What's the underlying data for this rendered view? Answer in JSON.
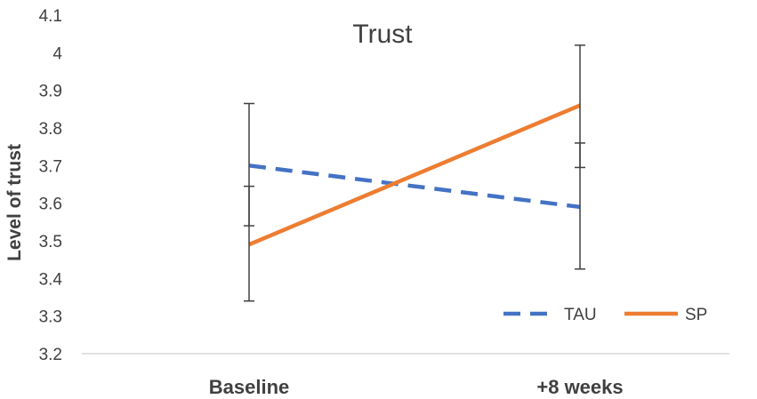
{
  "chart_data": {
    "type": "line",
    "title": "Trust",
    "xlabel": "",
    "ylabel": "Level of trust",
    "categories": [
      "Baseline",
      "+8 weeks"
    ],
    "ylim": [
      3.2,
      4.1
    ],
    "yticks": [
      3.2,
      3.3,
      3.4,
      3.5,
      3.6,
      3.7,
      3.8,
      3.9,
      4,
      4.1
    ],
    "grid": false,
    "legend_position": "bottom-right",
    "series": [
      {
        "name": "TAU",
        "values": [
          3.7,
          3.59
        ],
        "color": "#4472C4",
        "line_style": "dashed",
        "error_bars": [
          [
            3.54,
            3.865
          ],
          [
            3.425,
            3.76
          ]
        ]
      },
      {
        "name": "SP",
        "values": [
          3.49,
          3.86
        ],
        "color": "#ED7D31",
        "line_style": "solid",
        "error_bars": [
          [
            3.34,
            3.645
          ],
          [
            3.695,
            4.02
          ]
        ]
      }
    ]
  }
}
